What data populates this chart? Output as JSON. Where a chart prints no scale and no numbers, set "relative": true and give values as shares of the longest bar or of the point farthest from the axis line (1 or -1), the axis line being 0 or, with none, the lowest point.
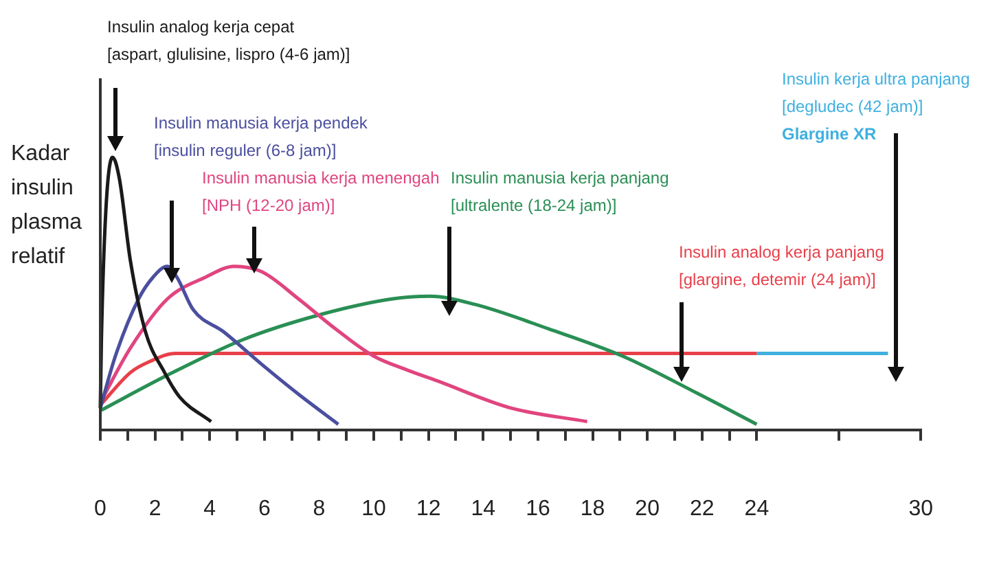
{
  "chart_data": {
    "type": "line",
    "relative": true,
    "marker": "none",
    "ylabel": "Kadar insulin plasma relatif",
    "xlim": [
      0,
      30
    ],
    "xticks": [
      0,
      {
        "value": 1,
        "label": null
      },
      2,
      {
        "value": 3,
        "label": null
      },
      4,
      {
        "value": 5,
        "label": null
      },
      6,
      {
        "value": 7,
        "label": null
      },
      8,
      {
        "value": 9,
        "label": null
      },
      10,
      {
        "value": 11,
        "label": null
      },
      12,
      {
        "value": 13,
        "label": null
      },
      14,
      {
        "value": 15,
        "label": null
      },
      16,
      {
        "value": 17,
        "label": null
      },
      18,
      {
        "value": 19,
        "label": null
      },
      20,
      {
        "value": 21,
        "label": null
      },
      22,
      {
        "value": 23,
        "label": null
      },
      24,
      {
        "value": 27,
        "label": null
      },
      30
    ],
    "series": [
      {
        "name": "Insulin analog kerja cepat\n[aspart, glulisine, lispro (4-6 jam)]",
        "color": "#1a1a1a",
        "x": [
          0,
          0.04,
          0.2,
          0.45,
          0.7,
          1.1,
          1.65,
          2.35,
          2.9,
          4.05
        ],
        "values": [
          0.08,
          0.33,
          0.8,
          1,
          0.92,
          0.62,
          0.36,
          0.21,
          0.12,
          0.03
        ]
      },
      {
        "name": "Insulin manusia kerja pendek\n[insulin reguler (6-8 jam)]",
        "color": "#4b4f9e",
        "x": [
          0,
          0.55,
          1.4,
          1.93,
          2.45,
          2.8,
          3.4,
          4.5,
          5.9,
          7.25,
          8.7
        ],
        "values": [
          0.08,
          0.27,
          0.48,
          0.56,
          0.6,
          0.56,
          0.44,
          0.36,
          0.24,
          0.13,
          0.02
        ]
      },
      {
        "name": "Insulin manusia kerja menengah\n[NPH (12-20 jam)]",
        "color": "#e0457f",
        "x": [
          0,
          1.1,
          2.45,
          3.85,
          4.9,
          5.9,
          7.25,
          8.6,
          10,
          11.2,
          12.3,
          15,
          17.8
        ],
        "values": [
          0.1,
          0.3,
          0.48,
          0.56,
          0.6,
          0.58,
          0.48,
          0.37,
          0.27,
          0.22,
          0.18,
          0.08,
          0.03
        ]
      },
      {
        "name": "Insulin manusia kerja panjang\n[ultralente (18-24 jam)]",
        "color": "#2a8f55",
        "x": [
          0,
          2.45,
          5.2,
          7.95,
          10.65,
          12.05,
          13.7,
          16.4,
          19.1,
          21.9,
          24
        ],
        "values": [
          0.07,
          0.2,
          0.33,
          0.42,
          0.48,
          0.49,
          0.46,
          0.37,
          0.27,
          0.13,
          0.02
        ]
      },
      {
        "name": "Insulin analog kerja panjang\n[glargine, detemir (24 jam)]",
        "color": "#e8404a",
        "x": [
          0,
          1.1,
          1.8,
          2.75,
          24
        ],
        "values": [
          0.09,
          0.21,
          0.25,
          0.28,
          0.28
        ]
      },
      {
        "name": "Insulin kerja ultra panjang\n[degludec (42 jam)]\nGlargine XR",
        "color": "#3fb0e0",
        "x": [
          24,
          28.8
        ],
        "values": [
          0.28,
          0.28
        ]
      }
    ]
  }
}
